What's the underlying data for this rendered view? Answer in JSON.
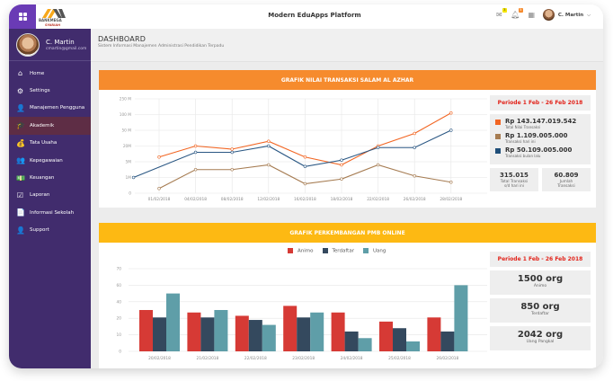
{
  "topbar": {
    "app_title": "Modern EduApps Platform",
    "logo_text": "BANKMEGA",
    "logo_sub": "SYARIAH",
    "mail_badge": "3",
    "notif_badge": "5",
    "user_name": "C. Martin"
  },
  "sidebar": {
    "profile": {
      "name": "C. Martin",
      "email": "cmartin@gmail.com"
    },
    "items": [
      {
        "label": "Home",
        "icon": "home-icon",
        "glyph": "⌂"
      },
      {
        "label": "Settings",
        "icon": "gear-icon",
        "glyph": "⚙"
      },
      {
        "label": "Manajemen Pengguna",
        "icon": "user-management-icon",
        "glyph": "👤"
      },
      {
        "label": "Akademik",
        "icon": "graduation-cap-icon",
        "glyph": "🎓",
        "active": true
      },
      {
        "label": "Tata Usaha",
        "icon": "money-bag-icon",
        "glyph": "💰"
      },
      {
        "label": "Kepegawaian",
        "icon": "users-icon",
        "glyph": "👥"
      },
      {
        "label": "Keuangan",
        "icon": "cash-icon",
        "glyph": "💵"
      },
      {
        "label": "Laporan",
        "icon": "checklist-icon",
        "glyph": "☑"
      },
      {
        "label": "Informasi Sekolah",
        "icon": "document-icon",
        "glyph": "📄"
      },
      {
        "label": "Support",
        "icon": "support-agent-icon",
        "glyph": "👤"
      }
    ]
  },
  "header": {
    "title": "DASHBOARD",
    "subtitle": "Sistem Informasi Manajemen Administrasi Pendidikan Terpadu"
  },
  "panel1": {
    "title": "GRAFIK NILAI TRANSAKSI SALAM AL AZHAR",
    "period": "Periode 1 Feb  - 26 Feb 2018",
    "legend": [
      {
        "value": "Rp 143.147.019.542",
        "label": "Total Nilai Transaksi",
        "color": "#f26522"
      },
      {
        "value": "Rp 1.109.005.000",
        "label": "Transaksi hari ini",
        "color": "#a67c52"
      },
      {
        "value": "Rp 50.109.005.000",
        "label": "Transaksi bulan lalu",
        "color": "#1f4e79"
      }
    ],
    "stats": [
      {
        "value": "315.015",
        "label1": "Total Transaksi",
        "label2": "s/d hari ini"
      },
      {
        "value": "60.809",
        "label1": "Jumlah",
        "label2": "Transaksi"
      }
    ]
  },
  "panel2": {
    "title": "GRAFIK PERKEMBANGAN PMB ONLINE",
    "period": "Periode 1 Feb  - 26 Feb 2018",
    "stats": [
      {
        "value": "1500 org",
        "label": "Animo"
      },
      {
        "value": "850 org",
        "label": "Terdaftar"
      },
      {
        "value": "2042 org",
        "label": "Uang Pangkal"
      }
    ]
  },
  "chart_data": [
    {
      "type": "line",
      "title": "GRAFIK NILAI TRANSAKSI SALAM AL AZHAR",
      "y_tick_labels": [
        "0",
        "1M",
        "5M",
        "20M",
        "50 M",
        "100 M",
        "250 M"
      ],
      "y_scale_note": "values expressed in tick-index units (0=0, 1=1M, 2=5M, 3=20M, 4=50M, 5=100M, 6=250M)",
      "ylim": [
        0,
        6
      ],
      "x_tick_labels": [
        "01/02/2018",
        "04/02/2018",
        "08/02/2018",
        "12/02/2018",
        "16/02/2018",
        "18/02/2018",
        "22/02/2018",
        "26/02/2018",
        "28/02/2018"
      ],
      "grid": true,
      "series": [
        {
          "name": "Total Nilai Transaksi",
          "color": "#f26522",
          "x": [
            1,
            2,
            3,
            4,
            5,
            6,
            7,
            8,
            9
          ],
          "values": [
            2.3,
            3.0,
            2.8,
            3.3,
            2.3,
            1.8,
            3.0,
            3.8,
            5.1
          ]
        },
        {
          "name": "Transaksi bulan lalu",
          "color": "#2a5783",
          "x": [
            0.3,
            2,
            3,
            4,
            5,
            6,
            7,
            8,
            9
          ],
          "values": [
            1.0,
            2.6,
            2.6,
            3.0,
            1.7,
            2.1,
            2.9,
            2.9,
            4.0
          ]
        },
        {
          "name": "Transaksi hari ini",
          "color": "#a67c52",
          "x": [
            1,
            2,
            3,
            4,
            5,
            6,
            7,
            8,
            9
          ],
          "values": [
            0.3,
            1.5,
            1.5,
            1.8,
            0.6,
            0.9,
            1.8,
            1.1,
            0.7
          ]
        }
      ]
    },
    {
      "type": "bar",
      "title": "GRAFIK PERKEMBANGAN PMB ONLINE",
      "categories": [
        "20/02/2018",
        "21/02/2018",
        "22/02/2018",
        "23/02/2018",
        "24/02/2018",
        "25/02/2018",
        "26/02/2018"
      ],
      "y_tick_labels": [
        "0",
        "10",
        "20",
        "40",
        "60",
        "70"
      ],
      "y_tick_values": [
        0,
        10,
        20,
        40,
        60,
        70
      ],
      "ylim": [
        0,
        70
      ],
      "legend_position": "top-center",
      "grid": true,
      "series": [
        {
          "name": "Animo",
          "color": "#d63a35",
          "values": [
            30,
            27,
            23,
            35,
            27,
            18,
            21
          ]
        },
        {
          "name": "Terdaftar",
          "color": "#34495e",
          "values": [
            21,
            21,
            19,
            21,
            12,
            14,
            12
          ]
        },
        {
          "name": "Uang",
          "color": "#5f9ea8",
          "values": [
            50,
            30,
            16,
            27,
            8,
            6,
            60
          ]
        }
      ]
    }
  ]
}
